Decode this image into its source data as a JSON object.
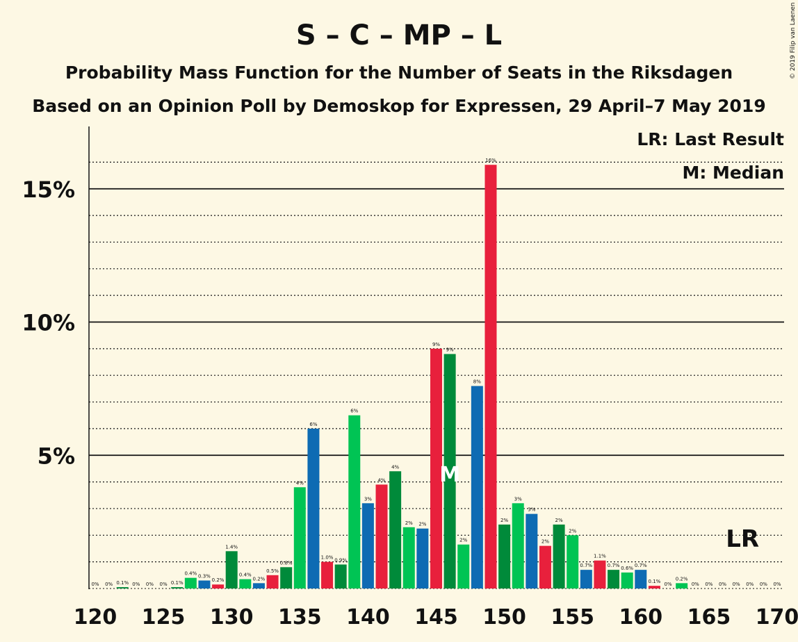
{
  "title": "S – C – MP – L",
  "subtitle1": "Probability Mass Function for the Number of Seats in the Riksdagen",
  "subtitle2": "Based on an Opinion Poll by Demoskop for Expressen, 29 April–7 May 2019",
  "copyright": "© 2019 Filip van Laenen",
  "legend": {
    "lr": "LR: Last Result",
    "median": "M: Median"
  },
  "colors": {
    "background": "#fdf8e4",
    "palette": [
      "#0e6bb3",
      "#e8203c",
      "#008a3a",
      "#00c454"
    ]
  },
  "chart_data": {
    "type": "bar",
    "title": "S – C – MP – L",
    "xlabel": "",
    "ylabel": "",
    "xlim": [
      120,
      170
    ],
    "ylim": [
      0,
      17
    ],
    "grid": true,
    "yticks": [
      {
        "value": 5,
        "label": "5%"
      },
      {
        "value": 10,
        "label": "10%"
      },
      {
        "value": 15,
        "label": "15%"
      }
    ],
    "xticks": [
      120,
      125,
      130,
      135,
      140,
      145,
      150,
      155,
      160,
      165,
      170
    ],
    "median_seat": 146,
    "median_marker": "M",
    "last_result_seat": 167,
    "last_result_marker": "LR",
    "bars": [
      {
        "seat": 120,
        "value": 0,
        "label": "0%"
      },
      {
        "seat": 121,
        "value": 0,
        "label": "0%"
      },
      {
        "seat": 122,
        "value": 0.05,
        "label": "0.1%"
      },
      {
        "seat": 123,
        "value": 0,
        "label": "0%"
      },
      {
        "seat": 124,
        "value": 0,
        "label": "0%"
      },
      {
        "seat": 125,
        "value": 0,
        "label": "0%"
      },
      {
        "seat": 126,
        "value": 0.05,
        "label": "0.1%"
      },
      {
        "seat": 127,
        "value": 0.4,
        "label": "0.4%"
      },
      {
        "seat": 128,
        "value": 0.3,
        "label": "0.3%"
      },
      {
        "seat": 129,
        "value": 0.15,
        "label": "0.2%"
      },
      {
        "seat": 130,
        "value": 1.4,
        "label": "1.4%"
      },
      {
        "seat": 131,
        "value": 0.35,
        "label": "0.4%"
      },
      {
        "seat": 132,
        "value": 0.2,
        "label": "0.2%"
      },
      {
        "seat": 133,
        "value": 0.5,
        "label": "0.5%"
      },
      {
        "seat": 134,
        "value": 0.8,
        "label": "0.8%"
      },
      {
        "seat": 135,
        "value": 3.8,
        "label": "4%"
      },
      {
        "seat": 136,
        "value": 6.0,
        "label": "6%"
      },
      {
        "seat": 137,
        "value": 1.0,
        "label": "1.0%"
      },
      {
        "seat": 138,
        "value": 0.9,
        "label": "0.9%"
      },
      {
        "seat": 139,
        "value": 6.5,
        "label": "6%"
      },
      {
        "seat": 140,
        "value": 3.2,
        "label": "3%"
      },
      {
        "seat": 141,
        "value": 3.9,
        "label": "4%"
      },
      {
        "seat": 142,
        "value": 4.4,
        "label": "4%"
      },
      {
        "seat": 143,
        "value": 2.3,
        "label": "2%"
      },
      {
        "seat": 144,
        "value": 2.25,
        "label": "2%"
      },
      {
        "seat": 145,
        "value": 9.0,
        "label": "9%"
      },
      {
        "seat": 146,
        "value": 8.8,
        "label": "9%"
      },
      {
        "seat": 147,
        "value": 1.65,
        "label": "2%"
      },
      {
        "seat": 148,
        "value": 7.6,
        "label": "8%"
      },
      {
        "seat": 149,
        "value": 15.9,
        "label": "16%"
      },
      {
        "seat": 150,
        "value": 2.4,
        "label": "2%"
      },
      {
        "seat": 151,
        "value": 3.2,
        "label": "3%"
      },
      {
        "seat": 152,
        "value": 2.8,
        "label": "3%"
      },
      {
        "seat": 153,
        "value": 1.6,
        "label": "2%"
      },
      {
        "seat": 154,
        "value": 2.4,
        "label": "2%"
      },
      {
        "seat": 155,
        "value": 2.0,
        "label": "2%"
      },
      {
        "seat": 156,
        "value": 0.7,
        "label": "0.7%"
      },
      {
        "seat": 157,
        "value": 1.05,
        "label": "1.1%"
      },
      {
        "seat": 158,
        "value": 0.7,
        "label": "0.7%"
      },
      {
        "seat": 159,
        "value": 0.6,
        "label": "0.6%"
      },
      {
        "seat": 160,
        "value": 0.7,
        "label": "0.7%"
      },
      {
        "seat": 161,
        "value": 0.1,
        "label": "0.1%"
      },
      {
        "seat": 162,
        "value": 0,
        "label": "0%"
      },
      {
        "seat": 163,
        "value": 0.2,
        "label": "0.2%"
      },
      {
        "seat": 164,
        "value": 0,
        "label": "0%"
      },
      {
        "seat": 165,
        "value": 0,
        "label": "0%"
      },
      {
        "seat": 166,
        "value": 0,
        "label": "0%"
      },
      {
        "seat": 167,
        "value": 0,
        "label": "0%"
      },
      {
        "seat": 168,
        "value": 0,
        "label": "0%"
      },
      {
        "seat": 169,
        "value": 0,
        "label": "0%"
      },
      {
        "seat": 170,
        "value": 0,
        "label": "0%"
      }
    ]
  }
}
